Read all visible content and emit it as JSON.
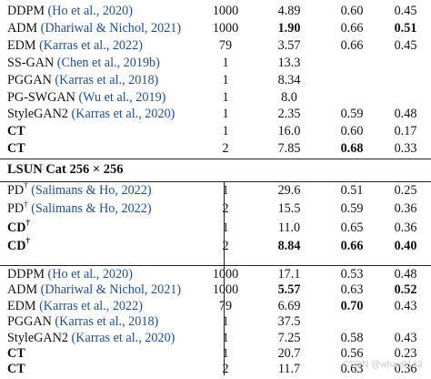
{
  "imagenet_rows": [
    {
      "pre": "DDPM",
      "cite": "(Ho et al., 2020)",
      "nfe": "1000",
      "fid": "4.89",
      "prec": "0.60",
      "rec": "0.45",
      "b": []
    },
    {
      "pre": "ADM",
      "cite": "(Dhariwal & Nichol, 2021)",
      "nfe": "1000",
      "fid": "1.90",
      "prec": "0.66",
      "rec": "0.51",
      "b": [
        "fid",
        "rec"
      ]
    },
    {
      "pre": "EDM",
      "cite": "(Karras et al., 2022)",
      "nfe": "79",
      "fid": "3.57",
      "prec": "0.66",
      "rec": "0.45",
      "b": []
    },
    {
      "pre": "SS-GAN",
      "cite": "(Chen et al., 2019b)",
      "nfe": "1",
      "fid": "13.3",
      "prec": "",
      "rec": "",
      "b": []
    },
    {
      "pre": "PGGAN",
      "cite": "(Karras et al., 2018)",
      "nfe": "1",
      "fid": "8.34",
      "prec": "",
      "rec": "",
      "b": []
    },
    {
      "pre": "PG-SWGAN",
      "cite": "(Wu et al., 2019)",
      "nfe": "1",
      "fid": "8.0",
      "prec": "",
      "rec": "",
      "b": []
    },
    {
      "pre": "StyleGAN2",
      "cite": "(Karras et al., 2020)",
      "nfe": "1",
      "fid": "2.35",
      "prec": "0.59",
      "rec": "0.48",
      "b": []
    },
    {
      "pre": "CT",
      "cite": "",
      "nfe": "1",
      "fid": "16.0",
      "prec": "0.60",
      "rec": "0.17",
      "b": [
        "pre"
      ]
    },
    {
      "pre": "CT",
      "cite": "",
      "nfe": "2",
      "fid": "7.85",
      "prec": "0.68",
      "rec": "0.33",
      "b": [
        "pre",
        "prec"
      ]
    }
  ],
  "section_title": "LSUN Cat 256 × 256",
  "distill_rows": [
    {
      "pre": "PD",
      "sup": "†",
      "cite": "(Salimans & Ho, 2022)",
      "nfe": "1",
      "fid": "29.6",
      "prec": "0.51",
      "rec": "0.25",
      "b": []
    },
    {
      "pre": "PD",
      "sup": "†",
      "cite": "(Salimans & Ho, 2022)",
      "nfe": "2",
      "fid": "15.5",
      "prec": "0.59",
      "rec": "0.36",
      "b": []
    },
    {
      "pre": "CD",
      "sup": "†",
      "cite": "",
      "nfe": "1",
      "fid": "11.0",
      "prec": "0.65",
      "rec": "0.36",
      "b": [
        "pre"
      ]
    },
    {
      "pre": "CD",
      "sup": "†",
      "cite": "",
      "nfe": "2",
      "fid": "8.84",
      "prec": "0.66",
      "rec": "0.40",
      "b": [
        "pre",
        "fid",
        "prec",
        "rec"
      ]
    }
  ],
  "direct_rows": [
    {
      "pre": "DDPM",
      "cite": "(Ho et al., 2020)",
      "nfe": "1000",
      "fid": "17.1",
      "prec": "0.53",
      "rec": "0.48",
      "b": []
    },
    {
      "pre": "ADM",
      "cite": "(Dhariwal & Nichol, 2021)",
      "nfe": "1000",
      "fid": "5.57",
      "prec": "0.63",
      "rec": "0.52",
      "b": [
        "fid",
        "rec"
      ]
    },
    {
      "pre": "EDM",
      "cite": "(Karras et al., 2022)",
      "nfe": "79",
      "fid": "6.69",
      "prec": "0.70",
      "rec": "0.43",
      "b": [
        "prec"
      ]
    },
    {
      "pre": "PGGAN",
      "cite": "(Karras et al., 2018)",
      "nfe": "1",
      "fid": "37.5",
      "prec": "",
      "rec": "",
      "b": []
    },
    {
      "pre": "StyleGAN2",
      "cite": "(Karras et al., 2020)",
      "nfe": "1",
      "fid": "7.25",
      "prec": "0.58",
      "rec": "0.43",
      "b": []
    },
    {
      "pre": "CT",
      "cite": "",
      "nfe": "1",
      "fid": "20.7",
      "prec": "0.56",
      "rec": "0.23",
      "b": [
        "pre"
      ]
    },
    {
      "pre": "CT",
      "cite": "",
      "nfe": "2",
      "fid": "11.7",
      "prec": "0.63",
      "rec": "0.36",
      "b": [
        "pre"
      ]
    }
  ],
  "watermark": "CSDN @whao0143"
}
